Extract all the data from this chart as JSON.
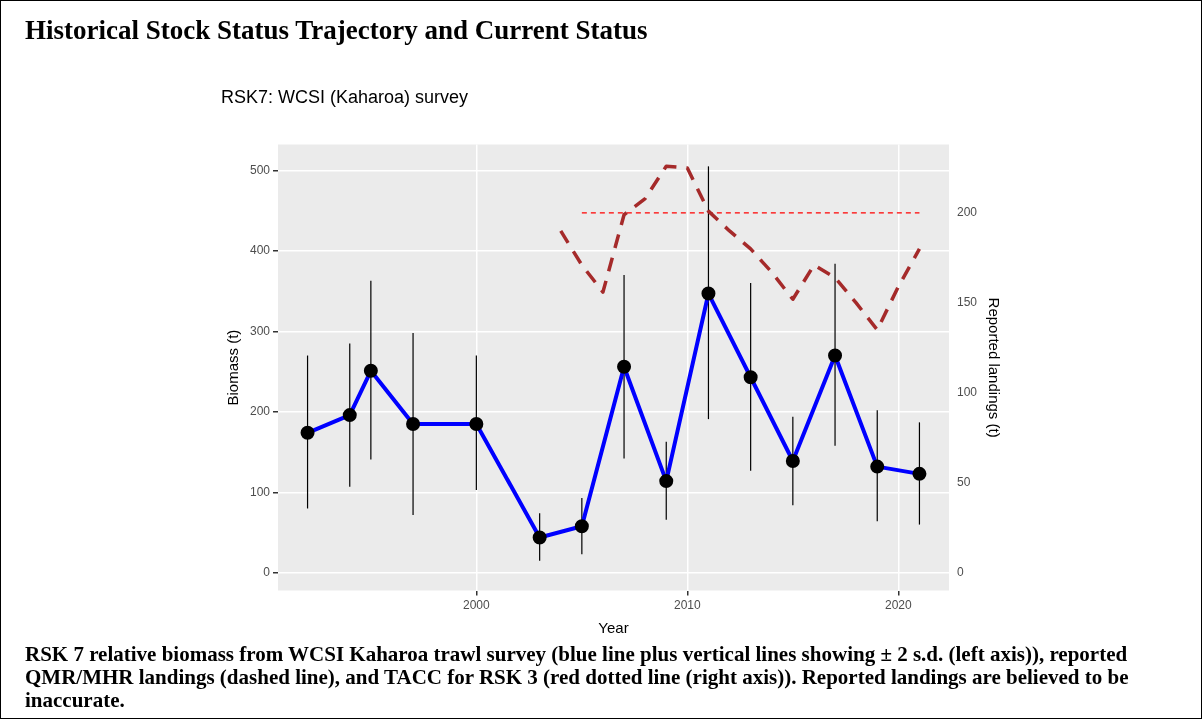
{
  "chart_data": {
    "type": "line",
    "title": "Historical Stock Status Trajectory and Current Status",
    "subtitle": "RSK7: WCSI (Kaharoa) survey",
    "xlabel": "Year",
    "ylabel": "Biomass (t)",
    "y2label": "Reported landings (t)",
    "xlim": [
      1990.6,
      2022.4
    ],
    "xticks": [
      2000,
      2010,
      2020
    ],
    "ylim": [
      -22,
      532
    ],
    "yticks": [
      0,
      100,
      200,
      300,
      400,
      500
    ],
    "y2lim": [
      -10,
      238
    ],
    "y2ticks": [
      0,
      50,
      100,
      150,
      200
    ],
    "grid": true,
    "series": [
      {
        "color": "#0000ff",
        "marker": "circle",
        "line_style": "solid",
        "x": [
          1992,
          1994,
          1995,
          1997,
          2000,
          2003,
          2005,
          2007,
          2009,
          2011,
          2013,
          2015,
          2017,
          2019,
          2021
        ],
        "values": [
          174,
          196,
          251,
          185,
          185,
          44,
          58,
          256,
          114,
          347,
          243,
          139,
          270,
          132,
          123
        ],
        "errors": [
          [
            80,
            270
          ],
          [
            107,
            285
          ],
          [
            141,
            363
          ],
          [
            72,
            298
          ],
          [
            103,
            270
          ],
          [
            15,
            74
          ],
          [
            23,
            93
          ],
          [
            142,
            370
          ],
          [
            66,
            163
          ],
          [
            191,
            505
          ],
          [
            127,
            360
          ],
          [
            84,
            194
          ],
          [
            158,
            384
          ],
          [
            64,
            202
          ],
          [
            60,
            187
          ]
        ]
      },
      {
        "color": "#a52a2a",
        "marker": "none",
        "line_style": "dashed",
        "axis": "y2",
        "x": [
          2004,
          2005,
          2006,
          2007,
          2008,
          2009,
          2010,
          2011,
          2012,
          2013,
          2014,
          2015,
          2016,
          2017,
          2018,
          2019,
          2020,
          2021
        ],
        "values": [
          190,
          171,
          156,
          199,
          208,
          226,
          225,
          201,
          190,
          180,
          167,
          152,
          171,
          164,
          150,
          135,
          159,
          180
        ]
      },
      {
        "color": "#ff0000",
        "marker": "none",
        "line_style": "dotted",
        "axis": "y2",
        "x": [
          2005,
          2021
        ],
        "values": [
          200,
          200
        ]
      }
    ],
    "annotations": [
      "RSK 7 relative biomass from WCSI Kaharoa trawl survey (blue line plus vertical lines showing ± 2 s.d. (left axis)), reported QMR/MHR landings (dashed line), and TACC for RSK 3 (red dotted line (right axis)). Reported landings are believed to be inaccurate."
    ]
  }
}
